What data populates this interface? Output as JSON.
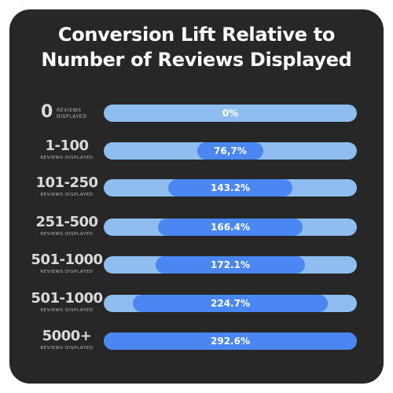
{
  "chart_data": {
    "type": "bar",
    "title": "Conversion Lift Relative to Number of Reviews Displayed",
    "title_lines": [
      "Conversion Lift Relative to",
      "Number of Reviews Displayed"
    ],
    "category_sublabel": "REVIEWS DISPLAYED",
    "category_sublabel_lines": [
      "REVIEWS",
      "DISPLAYED"
    ],
    "categories": [
      "0",
      "1-100",
      "101-250",
      "251-500",
      "501-1000",
      "501-1000",
      "5000+"
    ],
    "values": [
      0,
      76.7,
      143.2,
      166.4,
      172.1,
      224.7,
      292.6
    ],
    "value_labels": [
      "0%",
      "76,7%",
      "143.2%",
      "166.4%",
      "172.1%",
      "224.7%",
      "292.6%"
    ],
    "xlim": [
      0,
      292.6
    ],
    "colors": {
      "background": "#272727",
      "track": "#8fbdf0",
      "bar": "#4a87f2",
      "text": "#ffffff"
    }
  }
}
